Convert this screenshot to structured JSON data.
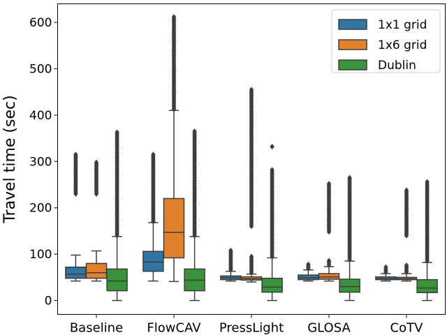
{
  "chart_data": {
    "type": "boxplot",
    "title": "",
    "xlabel": "",
    "ylabel": "Travel time (sec)",
    "ylim": [
      -30,
      640
    ],
    "yticks": [
      0,
      100,
      200,
      300,
      400,
      500,
      600
    ],
    "categories": [
      "Baseline",
      "FlowCAV",
      "PressLight",
      "GLOSA",
      "CoTV"
    ],
    "legend": {
      "position": "top-right"
    },
    "series": [
      {
        "name": "1x1 grid",
        "color": "#3274a1",
        "boxes": [
          {
            "whislo": 42,
            "q1": 48,
            "med": 57,
            "q3": 72,
            "whishi": 98,
            "outliers": [
              {
                "from": 230,
                "to": 315
              }
            ]
          },
          {
            "whislo": 42,
            "q1": 63,
            "med": 83,
            "q3": 106,
            "whishi": 168,
            "outliers": [
              {
                "from": 170,
                "to": 315
              }
            ]
          },
          {
            "whislo": 42,
            "q1": 45,
            "med": 49,
            "q3": 53,
            "whishi": 63,
            "outliers": [
              {
                "from": 66,
                "to": 108
              }
            ]
          },
          {
            "whislo": 42,
            "q1": 45,
            "med": 49,
            "q3": 55,
            "whishi": 66,
            "outliers": [
              {
                "from": 69,
                "to": 78
              }
            ]
          },
          {
            "whislo": 42,
            "q1": 45,
            "med": 47,
            "q3": 51,
            "whishi": 58,
            "outliers": [
              {
                "from": 61,
                "to": 72
              }
            ]
          }
        ]
      },
      {
        "name": "1x6 grid",
        "color": "#e1812c",
        "boxes": [
          {
            "whislo": 42,
            "q1": 48,
            "med": 60,
            "q3": 80,
            "whishi": 107,
            "outliers": [
              {
                "from": 230,
                "to": 298
              }
            ]
          },
          {
            "whislo": 41,
            "q1": 92,
            "med": 147,
            "q3": 220,
            "whishi": 410,
            "outliers": [
              {
                "from": 412,
                "to": 612
              }
            ]
          },
          {
            "whislo": 40,
            "q1": 44,
            "med": 47,
            "q3": 51,
            "whishi": 57,
            "outliers": [
              {
                "from": 60,
                "to": 95
              },
              {
                "from": 160,
                "to": 455
              }
            ]
          },
          {
            "whislo": 42,
            "q1": 46,
            "med": 51,
            "q3": 58,
            "whishi": 73,
            "outliers": [
              {
                "from": 76,
                "to": 86
              },
              {
                "from": 148,
                "to": 252
              }
            ]
          },
          {
            "whislo": 42,
            "q1": 45,
            "med": 47,
            "q3": 50,
            "whishi": 58,
            "outliers": [
              {
                "from": 61,
                "to": 76
              },
              {
                "from": 140,
                "to": 238
              }
            ]
          }
        ]
      },
      {
        "name": "Dublin",
        "color": "#3a923a",
        "boxes": [
          {
            "whislo": 0,
            "q1": 21,
            "med": 42,
            "q3": 68,
            "whishi": 138,
            "outliers": [
              {
                "from": 140,
                "to": 363
              }
            ]
          },
          {
            "whislo": 0,
            "q1": 21,
            "med": 44,
            "q3": 68,
            "whishi": 138,
            "outliers": [
              {
                "from": 140,
                "to": 365
              }
            ]
          },
          {
            "whislo": 0,
            "q1": 18,
            "med": 29,
            "q3": 48,
            "whishi": 92,
            "outliers": [
              {
                "from": 95,
                "to": 282
              },
              {
                "from": 332,
                "to": 332
              }
            ]
          },
          {
            "whislo": 0,
            "q1": 18,
            "med": 30,
            "q3": 46,
            "whishi": 85,
            "outliers": [
              {
                "from": 88,
                "to": 265
              }
            ]
          },
          {
            "whislo": 0,
            "q1": 17,
            "med": 27,
            "q3": 45,
            "whishi": 82,
            "outliers": [
              {
                "from": 85,
                "to": 256
              }
            ]
          }
        ]
      }
    ]
  }
}
